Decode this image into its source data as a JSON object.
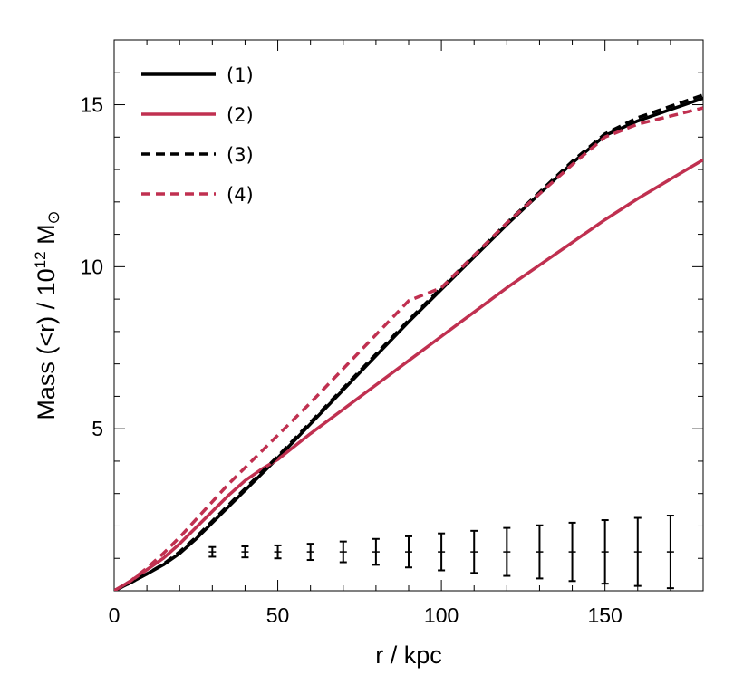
{
  "chart_data": {
    "type": "line",
    "xlabel": "r / kpc",
    "ylabel_parts": {
      "main": "Mass (<r) / 10",
      "exponent": "12",
      "unit": " M",
      "sun_symbol": "⊙"
    },
    "xlim": [
      0,
      180
    ],
    "ylim": [
      0,
      17
    ],
    "x_ticks": [
      0,
      50,
      100,
      150
    ],
    "y_ticks": [
      5,
      10,
      15
    ],
    "x_minor_step": 10,
    "y_minor_step": 1,
    "legend_position": "top-left",
    "series": [
      {
        "name": "(1)",
        "color": "#000000",
        "dash": "solid",
        "points": [
          [
            0,
            0
          ],
          [
            5,
            0.25
          ],
          [
            10,
            0.52
          ],
          [
            15,
            0.8
          ],
          [
            20,
            1.15
          ],
          [
            25,
            1.6
          ],
          [
            30,
            2.1
          ],
          [
            35,
            2.6
          ],
          [
            40,
            3.1
          ],
          [
            45,
            3.6
          ],
          [
            50,
            4.1
          ],
          [
            60,
            5.15
          ],
          [
            70,
            6.2
          ],
          [
            80,
            7.25
          ],
          [
            90,
            8.3
          ],
          [
            100,
            9.3
          ],
          [
            110,
            10.3
          ],
          [
            120,
            11.3
          ],
          [
            130,
            12.25
          ],
          [
            140,
            13.2
          ],
          [
            150,
            14.05
          ],
          [
            160,
            14.5
          ],
          [
            170,
            14.85
          ],
          [
            180,
            15.2
          ]
        ]
      },
      {
        "name": "(2)",
        "color": "#c03050",
        "dash": "solid",
        "points": [
          [
            0,
            0
          ],
          [
            5,
            0.3
          ],
          [
            10,
            0.65
          ],
          [
            15,
            1.0
          ],
          [
            20,
            1.45
          ],
          [
            25,
            1.95
          ],
          [
            30,
            2.45
          ],
          [
            35,
            2.95
          ],
          [
            40,
            3.4
          ],
          [
            45,
            3.75
          ],
          [
            50,
            4.05
          ],
          [
            60,
            4.85
          ],
          [
            70,
            5.6
          ],
          [
            80,
            6.35
          ],
          [
            90,
            7.1
          ],
          [
            100,
            7.85
          ],
          [
            110,
            8.6
          ],
          [
            120,
            9.35
          ],
          [
            130,
            10.05
          ],
          [
            140,
            10.75
          ],
          [
            150,
            11.45
          ],
          [
            160,
            12.1
          ],
          [
            170,
            12.7
          ],
          [
            180,
            13.3
          ]
        ]
      },
      {
        "name": "(3)",
        "color": "#000000",
        "dash": "dashed",
        "points": [
          [
            0,
            0
          ],
          [
            5,
            0.25
          ],
          [
            10,
            0.52
          ],
          [
            15,
            0.82
          ],
          [
            20,
            1.2
          ],
          [
            25,
            1.65
          ],
          [
            30,
            2.15
          ],
          [
            35,
            2.65
          ],
          [
            40,
            3.15
          ],
          [
            45,
            3.65
          ],
          [
            50,
            4.15
          ],
          [
            60,
            5.2
          ],
          [
            70,
            6.25
          ],
          [
            80,
            7.3
          ],
          [
            90,
            8.35
          ],
          [
            100,
            9.35
          ],
          [
            110,
            10.35
          ],
          [
            120,
            11.35
          ],
          [
            130,
            12.3
          ],
          [
            140,
            13.25
          ],
          [
            150,
            14.1
          ],
          [
            160,
            14.6
          ],
          [
            170,
            14.95
          ],
          [
            180,
            15.3
          ]
        ]
      },
      {
        "name": "(4)",
        "color": "#c03050",
        "dash": "dashed",
        "points": [
          [
            0,
            0
          ],
          [
            5,
            0.3
          ],
          [
            10,
            0.7
          ],
          [
            15,
            1.15
          ],
          [
            20,
            1.65
          ],
          [
            25,
            2.2
          ],
          [
            30,
            2.75
          ],
          [
            35,
            3.3
          ],
          [
            40,
            3.8
          ],
          [
            45,
            4.3
          ],
          [
            50,
            4.8
          ],
          [
            60,
            5.8
          ],
          [
            70,
            6.85
          ],
          [
            80,
            7.9
          ],
          [
            90,
            8.95
          ],
          [
            100,
            9.35
          ],
          [
            110,
            10.35
          ],
          [
            120,
            11.35
          ],
          [
            130,
            12.25
          ],
          [
            140,
            13.15
          ],
          [
            150,
            14.0
          ],
          [
            160,
            14.4
          ],
          [
            170,
            14.65
          ],
          [
            180,
            14.9
          ]
        ]
      }
    ],
    "error_bars": {
      "center": 1.2,
      "points": [
        {
          "x": 30,
          "half_width": 0.15
        },
        {
          "x": 40,
          "half_width": 0.17
        },
        {
          "x": 50,
          "half_width": 0.2
        },
        {
          "x": 60,
          "half_width": 0.25
        },
        {
          "x": 70,
          "half_width": 0.32
        },
        {
          "x": 80,
          "half_width": 0.4
        },
        {
          "x": 90,
          "half_width": 0.48
        },
        {
          "x": 100,
          "half_width": 0.57
        },
        {
          "x": 110,
          "half_width": 0.65
        },
        {
          "x": 120,
          "half_width": 0.74
        },
        {
          "x": 130,
          "half_width": 0.82
        },
        {
          "x": 140,
          "half_width": 0.9
        },
        {
          "x": 150,
          "half_width": 0.98
        },
        {
          "x": 160,
          "half_width": 1.05
        },
        {
          "x": 170,
          "half_width": 1.12
        }
      ]
    }
  }
}
